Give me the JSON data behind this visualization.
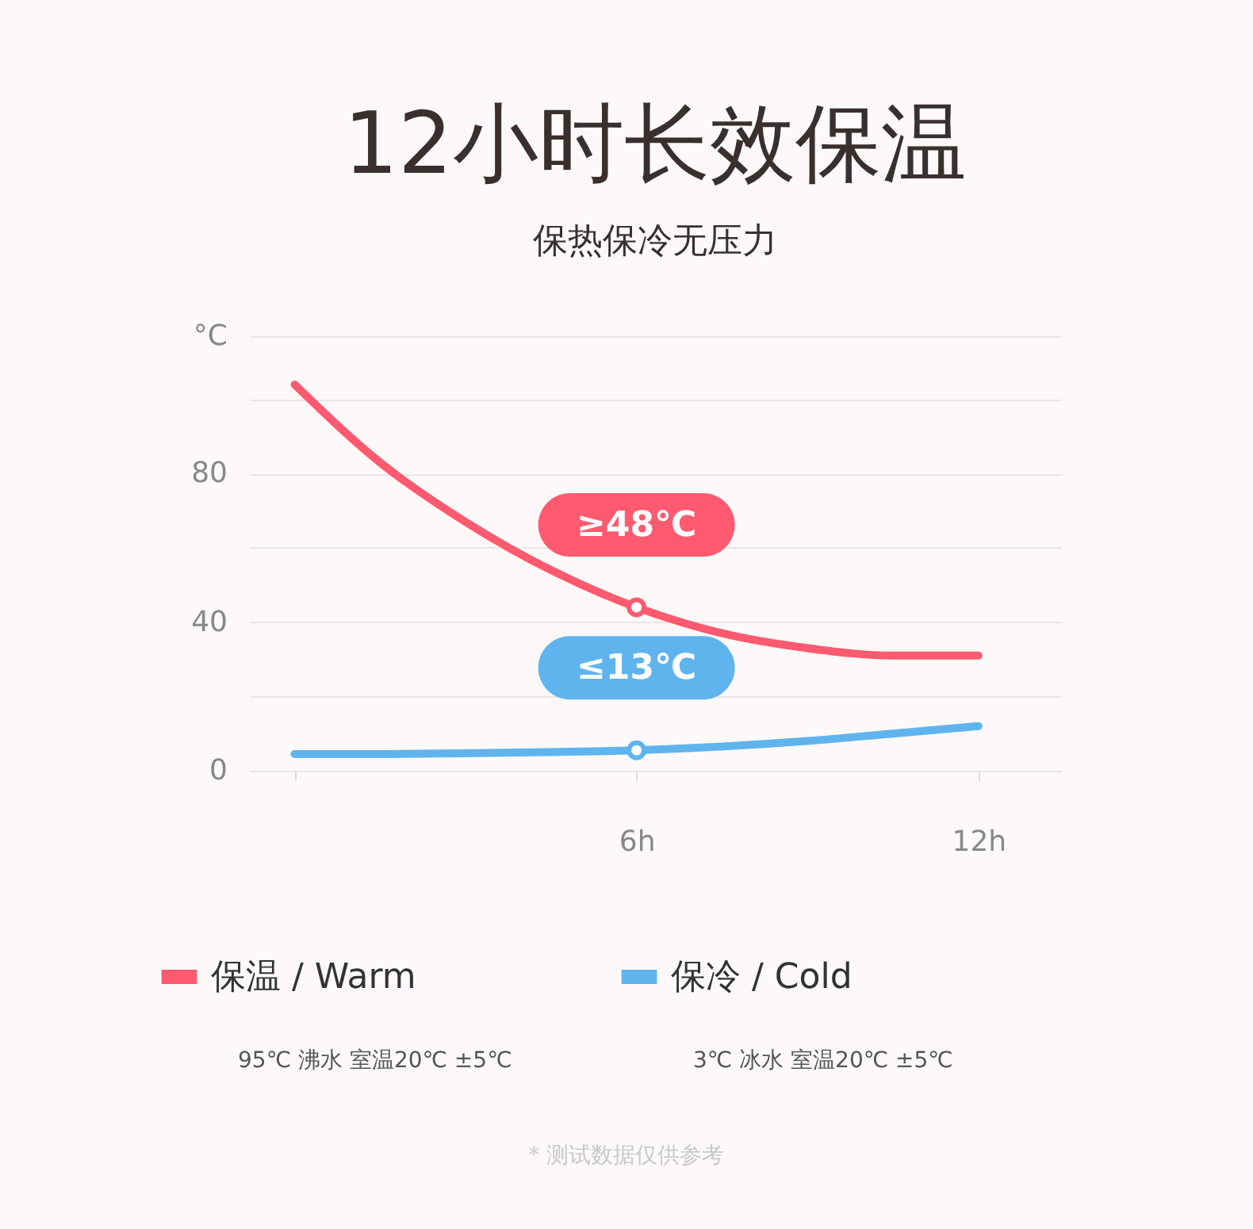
{
  "chart_data": {
    "type": "line",
    "title": "12小时长效保温",
    "subtitle": "保热保冷无压力",
    "x": [
      0,
      1.5,
      3,
      4.5,
      6,
      7.5,
      9,
      10.5,
      12
    ],
    "series": [
      {
        "name": "保温 / Warm",
        "color": "#ff5a70",
        "values": [
          104,
          83,
          67,
          54,
          44,
          37,
          33,
          31,
          31
        ]
      },
      {
        "name": "保冷 / Cold",
        "color": "#5fb4ee",
        "values": [
          4.5,
          4.5,
          4.7,
          5,
          5.5,
          6.5,
          8,
          10,
          12
        ]
      }
    ],
    "xlim": [
      -0.8,
      13.45
    ],
    "xticks": [
      {
        "value": 0,
        "label": null
      },
      {
        "value": 6,
        "label": "6h"
      },
      {
        "value": 12,
        "label": "12h"
      }
    ],
    "ylim": [
      0,
      117
    ],
    "yticks": [
      0,
      {
        "value": 20,
        "label": null
      },
      40,
      {
        "value": 60,
        "label": null
      },
      80,
      {
        "value": 100,
        "label": null
      },
      {
        "value": 117,
        "label": "°C"
      }
    ],
    "grid": "y",
    "legend": "bottom",
    "marker": "none",
    "line_style": "solid",
    "annotations": [
      {
        "text": "≥48℃",
        "x": 6,
        "y": 44
      },
      {
        "text": "≤13℃",
        "x": 6,
        "y": 5.5
      },
      "95℃ 沸水 室温20℃ ±5℃",
      "3℃ 冰水 室温20℃ ±5℃",
      "* 测试数据仅供参考"
    ]
  }
}
